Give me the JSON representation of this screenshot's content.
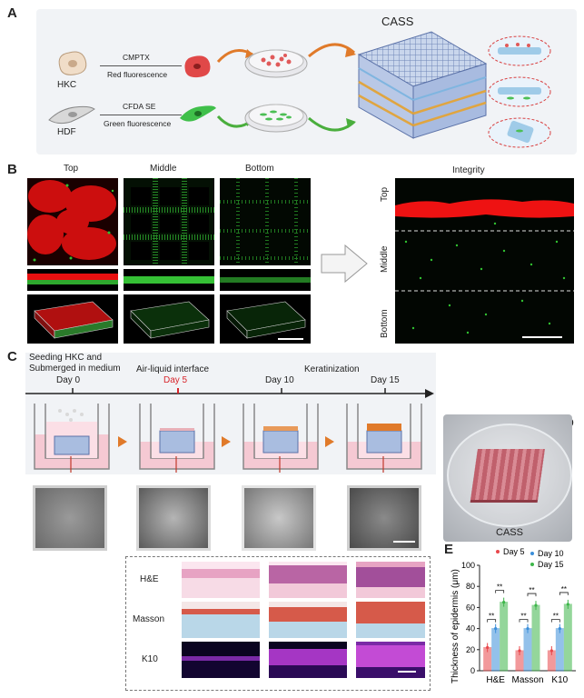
{
  "panels": {
    "A": "A",
    "B": "B",
    "C": "C",
    "D": "D",
    "E": "E"
  },
  "panelA": {
    "title": "CASS",
    "hkc_label": "HKC",
    "hdf_label": "HDF",
    "dye1": "CMPTX",
    "dye1_desc": "Red fluorescence",
    "dye2": "CFDA SE",
    "dye2_desc": "Green fluorescence"
  },
  "panelB": {
    "col_top": "Top",
    "col_middle": "Middle",
    "col_bottom": "Bottom",
    "integrity_title": "Integrity",
    "side_top": "Top",
    "side_middle": "Middle",
    "side_bottom": "Bottom"
  },
  "panelC": {
    "t0_desc": "Seeding HKC and",
    "t0_desc2": "Submerged in medium",
    "t5_desc": "Air-liquid interface",
    "t15_desc": "Keratinization",
    "day0": "Day 0",
    "day5": "Day 5",
    "day10": "Day 10",
    "day15": "Day 15",
    "row_he": "H&E",
    "row_masson": "Masson",
    "row_k10": "K10"
  },
  "panelD": {
    "label": "CASS"
  },
  "chart_data": {
    "type": "bar",
    "categories": [
      "H&E",
      "Masson",
      "K10"
    ],
    "series": [
      {
        "name": "Day 5",
        "values": [
          22,
          19,
          19
        ],
        "color": "#e8474b"
      },
      {
        "name": "Day 10",
        "values": [
          40,
          40,
          40
        ],
        "color": "#3b8fd9"
      },
      {
        "name": "Day 15",
        "values": [
          65,
          62,
          63
        ],
        "color": "#3db64a"
      }
    ],
    "significance": [
      "**",
      "**",
      "**",
      "**",
      "**",
      "**"
    ],
    "xlabel": "",
    "ylabel": "Thickness of epidermis (μm)",
    "ylim": [
      0,
      100
    ],
    "yticks": [
      0,
      20,
      40,
      60,
      80,
      100
    ],
    "legend": "top-right"
  }
}
